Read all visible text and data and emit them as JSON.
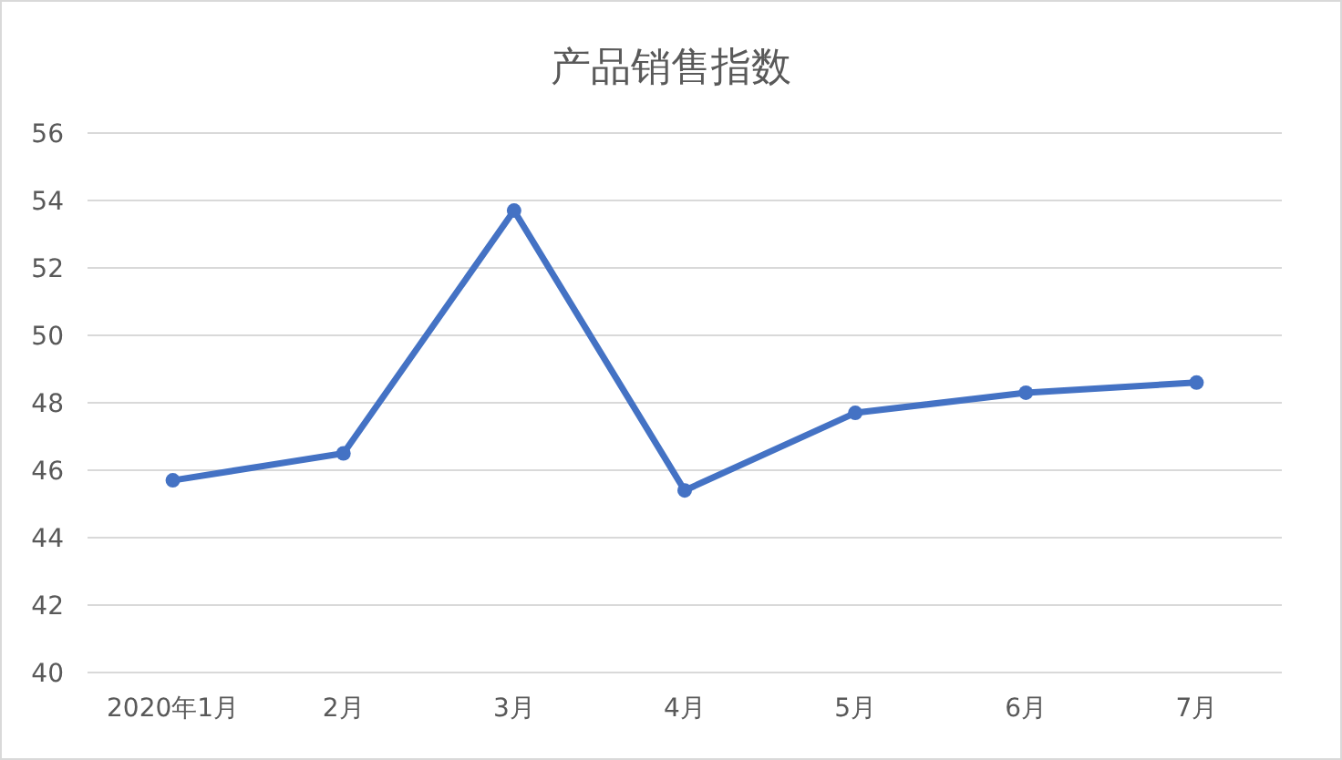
{
  "chart_data": {
    "type": "line",
    "title": "产品销售指数",
    "categories": [
      "2020年1月",
      "2月",
      "3月",
      "4月",
      "5月",
      "6月",
      "7月"
    ],
    "series": [
      {
        "color": "#4472c4",
        "values": [
          45.7,
          46.5,
          53.7,
          45.4,
          47.7,
          48.3,
          48.6
        ]
      }
    ],
    "ylim": [
      40,
      56
    ],
    "yticks": [
      40,
      42,
      44,
      46,
      48,
      50,
      52,
      54,
      56
    ],
    "grid": "y",
    "marker": "circle",
    "line_style": "solid"
  }
}
